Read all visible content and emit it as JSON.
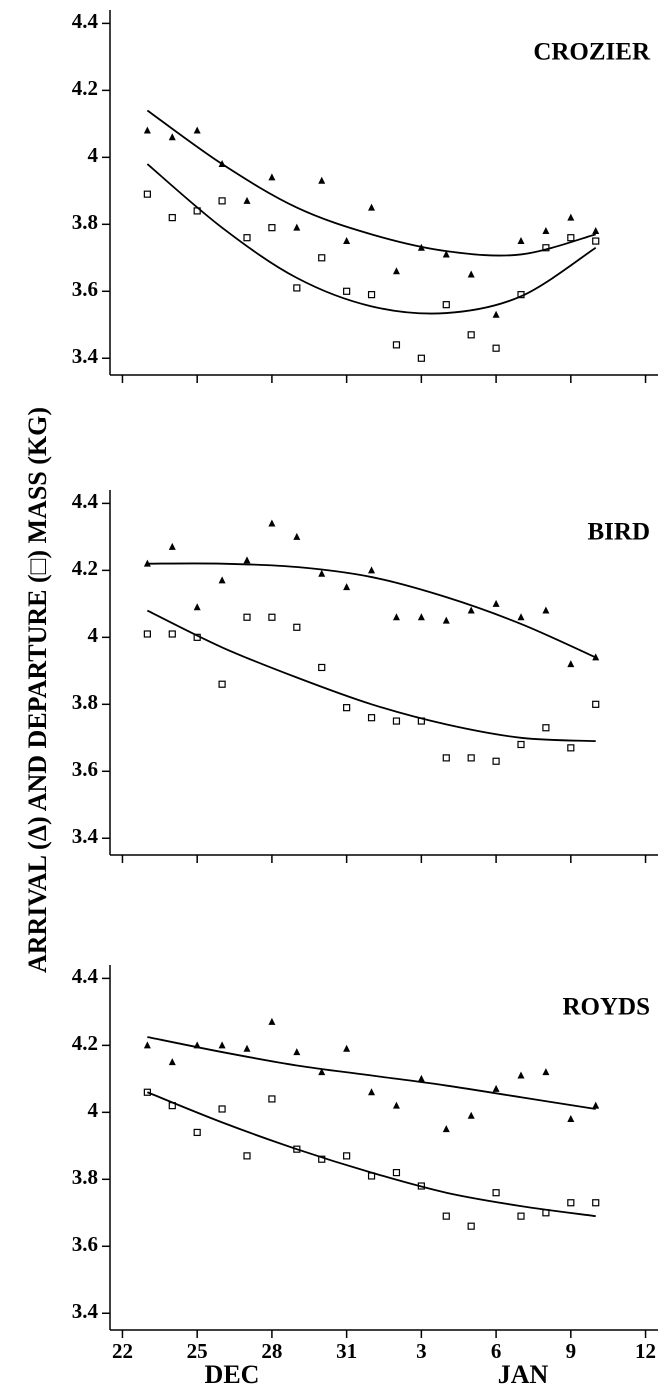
{
  "chart_data": [
    {
      "type": "scatter",
      "title": "CROZIER",
      "xlim": [
        21.5,
        43.5
      ],
      "xticks": [
        22,
        25,
        28,
        31,
        34,
        37,
        40,
        43
      ],
      "ylim": [
        3.35,
        4.44
      ],
      "yticks": [
        3.4,
        3.6,
        3.8,
        4.0,
        4.2,
        4.4
      ],
      "series": [
        {
          "marker": "triangle",
          "color": "#000000",
          "x": [
            23,
            24,
            25,
            26,
            27,
            28,
            29,
            30,
            31,
            32,
            33,
            34,
            35,
            36,
            37,
            38,
            39,
            40,
            41
          ],
          "values": [
            4.08,
            4.06,
            4.08,
            3.98,
            3.87,
            3.94,
            3.79,
            3.93,
            3.75,
            3.85,
            3.66,
            3.73,
            3.71,
            3.65,
            3.53,
            3.75,
            3.78,
            3.82,
            3.78
          ]
        },
        {
          "marker": "square",
          "color": "#000000",
          "x": [
            23,
            24,
            25,
            26,
            27,
            28,
            29,
            30,
            31,
            32,
            33,
            34,
            35,
            36,
            37,
            38,
            39,
            40,
            41
          ],
          "values": [
            3.89,
            3.82,
            3.84,
            3.87,
            3.76,
            3.79,
            3.61,
            3.7,
            3.6,
            3.59,
            3.44,
            3.4,
            3.56,
            3.47,
            3.43,
            3.59,
            3.73,
            3.76,
            3.75
          ]
        },
        {
          "marker": "line",
          "color": "#000000",
          "x": [
            23,
            26,
            29,
            32,
            35,
            38,
            41
          ],
          "values": [
            4.14,
            3.98,
            3.85,
            3.77,
            3.72,
            3.71,
            3.77
          ]
        },
        {
          "marker": "line",
          "color": "#000000",
          "x": [
            23,
            26,
            29,
            32,
            35,
            38,
            41
          ],
          "values": [
            3.98,
            3.79,
            3.64,
            3.555,
            3.535,
            3.585,
            3.73
          ]
        }
      ]
    },
    {
      "type": "scatter",
      "title": "BIRD",
      "ylabel": "ARRIVAL (Δ) AND DEPARTURE (□) MASS (KG)",
      "xlim": [
        21.5,
        43.5
      ],
      "xticks": [
        22,
        25,
        28,
        31,
        34,
        37,
        40,
        43
      ],
      "ylim": [
        3.35,
        4.44
      ],
      "yticks": [
        3.4,
        3.6,
        3.8,
        4.0,
        4.2,
        4.4
      ],
      "series": [
        {
          "marker": "triangle",
          "color": "#000000",
          "x": [
            23,
            24,
            25,
            26,
            27,
            28,
            29,
            30,
            31,
            32,
            33,
            34,
            35,
            36,
            37,
            38,
            39,
            40,
            41
          ],
          "values": [
            4.22,
            4.27,
            4.09,
            4.17,
            4.23,
            4.34,
            4.3,
            4.19,
            4.15,
            4.2,
            4.06,
            4.06,
            4.05,
            4.08,
            4.1,
            4.06,
            4.08,
            3.92,
            3.94
          ]
        },
        {
          "marker": "square",
          "color": "#000000",
          "x": [
            23,
            24,
            25,
            26,
            27,
            28,
            29,
            30,
            31,
            32,
            33,
            34,
            35,
            36,
            37,
            38,
            39,
            40,
            41
          ],
          "values": [
            4.01,
            4.01,
            4.0,
            3.86,
            4.06,
            4.06,
            4.03,
            3.91,
            3.79,
            3.76,
            3.75,
            3.75,
            3.64,
            3.64,
            3.63,
            3.68,
            3.73,
            3.67,
            3.8
          ]
        },
        {
          "marker": "line",
          "color": "#000000",
          "x": [
            23,
            26,
            29,
            32,
            35,
            38,
            41
          ],
          "values": [
            4.22,
            4.22,
            4.21,
            4.18,
            4.12,
            4.04,
            3.94
          ]
        },
        {
          "marker": "line",
          "color": "#000000",
          "x": [
            23,
            26,
            29,
            32,
            35,
            38,
            41
          ],
          "values": [
            4.08,
            3.97,
            3.88,
            3.8,
            3.74,
            3.7,
            3.69
          ]
        }
      ]
    },
    {
      "type": "scatter",
      "title": "ROYDS",
      "xlabels": [
        "DEC",
        "JAN"
      ],
      "xlim": [
        21.5,
        43.5
      ],
      "xticks": [
        22,
        25,
        28,
        31,
        {
          "value": 34,
          "label": "3"
        },
        {
          "value": 37,
          "label": "6"
        },
        {
          "value": 40,
          "label": "9"
        },
        {
          "value": 43,
          "label": "12"
        }
      ],
      "ylim": [
        3.35,
        4.44
      ],
      "yticks": [
        3.4,
        3.6,
        3.8,
        4.0,
        4.2,
        4.4
      ],
      "series": [
        {
          "marker": "triangle",
          "color": "#000000",
          "x": [
            23,
            24,
            25,
            26,
            27,
            28,
            29,
            30,
            31,
            32,
            33,
            34,
            35,
            36,
            37,
            38,
            39,
            40,
            41
          ],
          "values": [
            4.2,
            4.15,
            4.2,
            4.2,
            4.19,
            4.27,
            4.18,
            4.12,
            4.19,
            4.06,
            4.02,
            4.1,
            3.95,
            3.99,
            4.07,
            4.11,
            4.12,
            3.98,
            4.02
          ]
        },
        {
          "marker": "square",
          "color": "#000000",
          "x": [
            23,
            24,
            25,
            26,
            27,
            28,
            29,
            30,
            31,
            32,
            33,
            34,
            35,
            36,
            37,
            38,
            39,
            40,
            41
          ],
          "values": [
            4.06,
            4.02,
            3.94,
            4.01,
            3.87,
            4.04,
            3.89,
            3.86,
            3.87,
            3.81,
            3.82,
            3.78,
            3.69,
            3.66,
            3.76,
            3.69,
            3.7,
            3.73,
            3.73
          ]
        },
        {
          "marker": "line",
          "color": "#000000",
          "x": [
            23,
            26,
            29,
            32,
            35,
            38,
            41
          ],
          "values": [
            4.225,
            4.18,
            4.14,
            4.11,
            4.08,
            4.045,
            4.01
          ]
        },
        {
          "marker": "line",
          "color": "#000000",
          "x": [
            23,
            26,
            29,
            32,
            35,
            38,
            41
          ],
          "values": [
            4.06,
            3.97,
            3.89,
            3.82,
            3.76,
            3.72,
            3.69
          ]
        }
      ]
    }
  ]
}
